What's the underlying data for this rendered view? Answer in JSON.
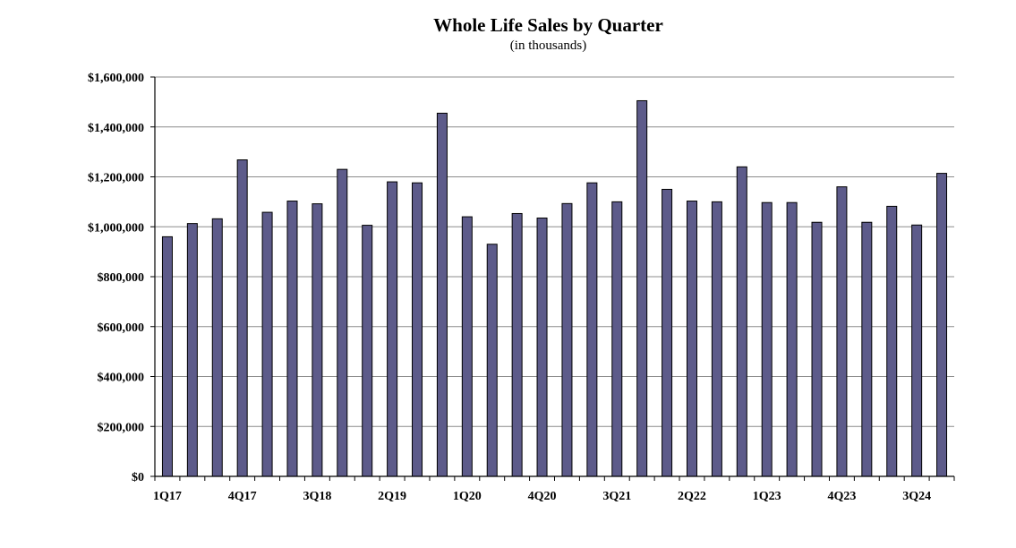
{
  "chart_data": {
    "type": "bar",
    "title": "Whole Life Sales by Quarter",
    "subtitle": "(in thousands)",
    "categories": [
      "1Q17",
      "2Q17",
      "3Q17",
      "4Q17",
      "1Q18",
      "2Q18",
      "3Q18",
      "4Q18",
      "1Q19",
      "2Q19",
      "3Q19",
      "4Q19",
      "1Q20",
      "2Q20",
      "3Q20",
      "4Q20",
      "1Q21",
      "2Q21",
      "3Q21",
      "4Q21",
      "1Q22",
      "2Q22",
      "3Q22",
      "4Q22",
      "1Q23",
      "2Q23",
      "3Q23",
      "4Q23",
      "1Q24",
      "2Q24",
      "3Q24",
      "4Q24"
    ],
    "values": [
      960000,
      1013000,
      1032000,
      1268000,
      1058000,
      1103000,
      1092000,
      1230000,
      1006000,
      1180000,
      1176000,
      1455000,
      1040000,
      930000,
      1053000,
      1035000,
      1093000,
      1176000,
      1100000,
      1505000,
      1150000,
      1103000,
      1100000,
      1240000,
      1097000,
      1097000,
      1018000,
      1160000,
      1018000,
      1082000,
      1007000,
      1214000
    ],
    "x_tick_labels": [
      "1Q17",
      "4Q17",
      "3Q18",
      "2Q19",
      "1Q20",
      "4Q20",
      "3Q21",
      "2Q22",
      "1Q23",
      "4Q23",
      "3Q24"
    ],
    "y_tick_labels": [
      "$0",
      "$200,000",
      "$400,000",
      "$600,000",
      "$800,000",
      "$1,000,000",
      "$1,200,000",
      "$1,400,000",
      "$1,600,000"
    ],
    "ylim": [
      0,
      1600000
    ],
    "xlabel": "",
    "ylabel": "",
    "grid": true,
    "legend": "none",
    "bar_color": "#5d5b8a"
  }
}
